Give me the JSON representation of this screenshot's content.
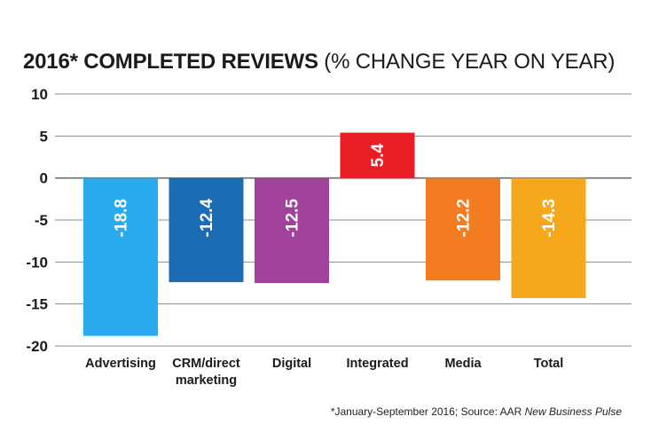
{
  "chart_data": {
    "type": "bar",
    "title_bold": "2016* COMPLETED REVIEWS",
    "title_light": "(% CHANGE YEAR ON YEAR)",
    "categories": [
      [
        "Advertising"
      ],
      [
        "CRM/direct",
        "marketing"
      ],
      [
        "Digital"
      ],
      [
        "Integrated"
      ],
      [
        "Media"
      ],
      [
        "Total"
      ]
    ],
    "values": [
      -18.8,
      -12.4,
      -12.5,
      5.4,
      -12.2,
      -14.3
    ],
    "data_labels": [
      "-18.8",
      "-12.4",
      "-12.5",
      "5.4",
      "-12.2",
      "-14.3"
    ],
    "colors": [
      "#29aaef",
      "#1a6cb5",
      "#a0429b",
      "#ea1d25",
      "#f37b20",
      "#f6a81c"
    ],
    "ylim": [
      -20,
      10
    ],
    "yticks": [
      10,
      5,
      0,
      -5,
      -10,
      -15,
      -20
    ],
    "grid": true,
    "footnote_plain": "*January-September 2016; Source: AAR ",
    "footnote_italic": "New Business Pulse"
  }
}
